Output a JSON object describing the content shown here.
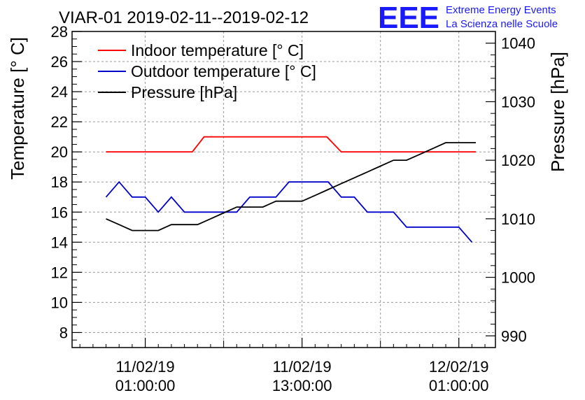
{
  "title": "VIAR-01 2019-02-11--2019-02-12",
  "logo": {
    "mark": "EEE",
    "line1": "Extreme Energy Events",
    "line2": "La Scienza nelle Scuole",
    "color": "#1a1aff"
  },
  "chart_data": {
    "type": "line",
    "ylabel": "Temperature [° C]",
    "y2label": "Pressure [hPa]",
    "ylim": [
      7,
      28
    ],
    "y2lim": [
      988,
      1042
    ],
    "yticks": [
      "8",
      "10",
      "12",
      "14",
      "16",
      "18",
      "20",
      "22",
      "24",
      "26",
      "28"
    ],
    "y2ticks": [
      "990",
      "1000",
      "1010",
      "1020",
      "1030",
      "1040"
    ],
    "xticks": [
      {
        "hours": 1,
        "date": "11/02/19",
        "time": "01:00:00"
      },
      {
        "hours": 13,
        "date": "11/02/19",
        "time": "13:00:00"
      },
      {
        "hours": 25,
        "date": "12/02/19",
        "time": "01:00:00"
      }
    ],
    "xlim_hours": [
      -4.6,
      27.8
    ],
    "grid": true,
    "legend_position": "top-left",
    "series": [
      {
        "name": "Indoor temperature [° C]",
        "axis": "left",
        "color": "#ff0000",
        "x": [
          -2,
          1,
          4.6,
          5.5,
          10,
          14.9,
          16,
          22,
          26.3
        ],
        "y": [
          20,
          20,
          20,
          21,
          21,
          21,
          20,
          20,
          20
        ]
      },
      {
        "name": "Outdoor temperature [° C]",
        "axis": "left",
        "color": "#0000cc",
        "x": [
          -2,
          -1,
          0,
          1,
          2,
          3,
          4,
          5,
          6,
          7,
          8,
          9,
          10,
          11,
          12,
          13,
          14,
          15,
          16,
          17,
          18,
          19,
          20,
          21,
          22,
          23,
          24,
          25,
          26
        ],
        "y": [
          17,
          18,
          17,
          17,
          16,
          17,
          16,
          16,
          16,
          16,
          16,
          17,
          17,
          17,
          18,
          18,
          18,
          18,
          17,
          17,
          16,
          16,
          16,
          15,
          15,
          15,
          15,
          15,
          14
        ]
      },
      {
        "name": "Pressure [hPa]",
        "axis": "right",
        "color": "#000000",
        "x": [
          -2,
          -1,
          0,
          1,
          2,
          3,
          4,
          5,
          6,
          7,
          8,
          9,
          10,
          11,
          12,
          13,
          14,
          15,
          16,
          17,
          18,
          19,
          20,
          21,
          22,
          23,
          24,
          25,
          26,
          26.3
        ],
        "y": [
          1010,
          1009,
          1008,
          1008,
          1008,
          1009,
          1009,
          1009,
          1010,
          1011,
          1012,
          1012,
          1012,
          1013,
          1013,
          1013,
          1014,
          1015,
          1016,
          1017,
          1018,
          1019,
          1020,
          1020,
          1021,
          1022,
          1023,
          1023,
          1023,
          1023
        ]
      }
    ]
  }
}
